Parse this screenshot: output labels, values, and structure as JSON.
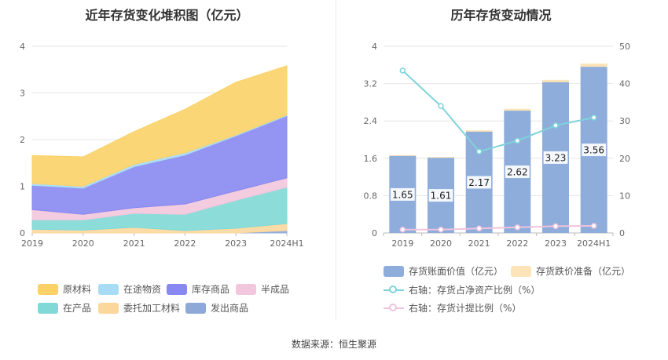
{
  "left_title": "近年存货变化堆积图（亿元）",
  "right_title": "历年存货变动情况",
  "source": "数据来源：恒生聚源",
  "chart_data": [
    {
      "type": "area",
      "stacked": true,
      "title": "近年存货变化堆积图（亿元）",
      "categories": [
        "2019",
        "2020",
        "2021",
        "2022",
        "2023",
        "2024H1"
      ],
      "ylim": [
        0,
        4
      ],
      "yticks": [
        "0",
        "1",
        "2",
        "3",
        "4"
      ],
      "grid": true,
      "legend_position": "bottom",
      "series": [
        {
          "name": "发出商品",
          "color": "#8ea9d8",
          "values": [
            0.0,
            0.0,
            0.0,
            0.0,
            0.0,
            0.05
          ]
        },
        {
          "name": "委托加工材料",
          "color": "#fbd79c",
          "values": [
            0.08,
            0.06,
            0.12,
            0.05,
            0.1,
            0.15
          ]
        },
        {
          "name": "在产品",
          "color": "#80d9d6",
          "values": [
            0.2,
            0.22,
            0.3,
            0.35,
            0.6,
            0.78
          ]
        },
        {
          "name": "半成品",
          "color": "#f2c6dd",
          "values": [
            0.22,
            0.12,
            0.12,
            0.22,
            0.2,
            0.2
          ]
        },
        {
          "name": "库存商品",
          "color": "#8888f2",
          "values": [
            0.52,
            0.56,
            0.88,
            1.05,
            1.18,
            1.33
          ]
        },
        {
          "name": "在途物资",
          "color": "#a8dcf4",
          "values": [
            0.04,
            0.04,
            0.05,
            0.05,
            0.02,
            0.02
          ]
        },
        {
          "name": "原材料",
          "color": "#fbd168",
          "values": [
            0.6,
            0.63,
            0.7,
            0.93,
            1.13,
            1.05
          ]
        }
      ],
      "legend_order": [
        "原材料",
        "在途物资",
        "库存商品",
        "半成品",
        "在产品",
        "委托加工材料",
        "发出商品"
      ]
    },
    {
      "type": "bar",
      "title": "历年存货变动情况",
      "categories": [
        "2019",
        "2020",
        "2021",
        "2022",
        "2023",
        "2024H1"
      ],
      "ylim": [
        0,
        4
      ],
      "yticks": [
        "0",
        "0.8",
        "1.6",
        "2.4",
        "3.2",
        "4"
      ],
      "y2lim": [
        0,
        50
      ],
      "y2ticks": [
        "0",
        "10",
        "20",
        "30",
        "40",
        "50"
      ],
      "grid": true,
      "series": [
        {
          "name": "存货账面价值（亿元）",
          "color": "#8eaddb",
          "values": [
            1.65,
            1.61,
            2.17,
            2.62,
            3.23,
            3.56
          ],
          "labels": [
            "1.65",
            "1.61",
            "2.17",
            "2.62",
            "3.23",
            "3.56"
          ]
        },
        {
          "name": "存货跌价准备（亿元）",
          "color": "#fde4b8",
          "values": [
            0.02,
            0.02,
            0.03,
            0.04,
            0.05,
            0.07
          ]
        },
        {
          "name": "右轴：存货占净资产比例（%）",
          "color": "#7ed3da",
          "axis": "right",
          "values": [
            43.5,
            34.0,
            21.8,
            24.7,
            28.8,
            30.9
          ]
        },
        {
          "name": "右轴：存货计提比例（%）",
          "color": "#f0c3dc",
          "axis": "right",
          "values": [
            0.9,
            0.9,
            1.2,
            1.5,
            1.8,
            1.9
          ]
        }
      ]
    }
  ]
}
